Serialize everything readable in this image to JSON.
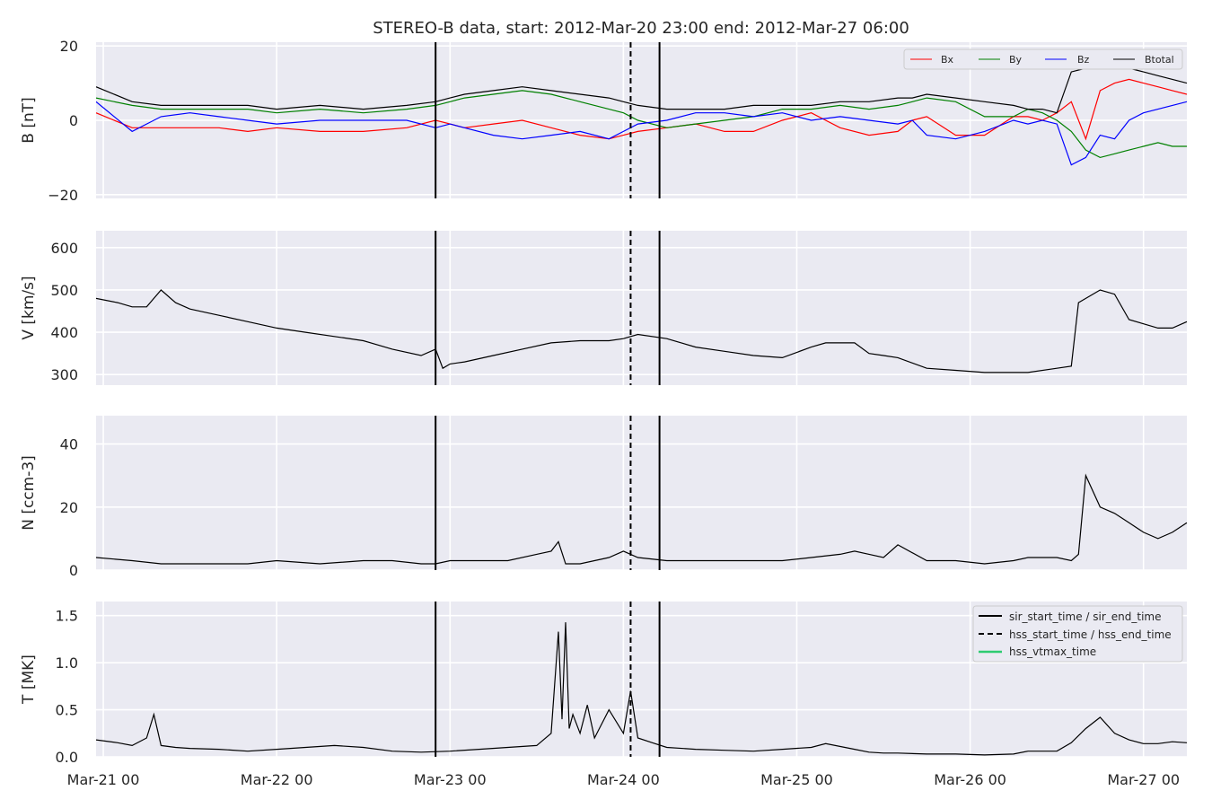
{
  "title": "STEREO-B data, start: 2012-Mar-20 23:00  end: 2012-Mar-27 06:00",
  "x_ticks": [
    "Mar-21 00",
    "Mar-22 00",
    "Mar-23 00",
    "Mar-24 00",
    "Mar-25 00",
    "Mar-26 00",
    "Mar-27 00"
  ],
  "colors": {
    "bx": "#ff0000",
    "by": "#008000",
    "bz": "#0000ff",
    "btotal": "#000000",
    "vtmax": "#2ecc71",
    "panel_bg": "#eaeaf2"
  },
  "chart_data": [
    {
      "type": "line",
      "ylabel": "B [nT]",
      "xlim": [
        -1,
        150
      ],
      "ylim": [
        -21,
        21
      ],
      "y_ticks": [
        "20",
        "0",
        "−20"
      ],
      "y_tick_values": [
        20,
        0,
        -20
      ],
      "legend_position": "top-right",
      "series": [
        {
          "name": "Bx",
          "color": "#ff0000",
          "x": [
            -1,
            4,
            8,
            12,
            16,
            20,
            24,
            30,
            36,
            42,
            46,
            48,
            50,
            54,
            58,
            62,
            66,
            70,
            72,
            74,
            78,
            82,
            86,
            90,
            94,
            98,
            102,
            106,
            110,
            112,
            114,
            118,
            122,
            126,
            128,
            130,
            132,
            134,
            136,
            138,
            140,
            142,
            144,
            146,
            148,
            150
          ],
          "y": [
            2,
            -2,
            -2,
            -2,
            -2,
            -3,
            -2,
            -3,
            -3,
            -2,
            0,
            -1,
            -2,
            -1,
            0,
            -2,
            -4,
            -5,
            -4,
            -3,
            -2,
            -1,
            -3,
            -3,
            0,
            2,
            -2,
            -4,
            -3,
            0,
            1,
            -4,
            -4,
            1,
            1,
            0,
            2,
            5,
            -5,
            8,
            10,
            11,
            10,
            9,
            8,
            7
          ]
        },
        {
          "name": "By",
          "color": "#008000",
          "x": [
            -1,
            4,
            8,
            12,
            16,
            20,
            24,
            30,
            36,
            42,
            46,
            48,
            50,
            54,
            58,
            62,
            66,
            70,
            72,
            74,
            78,
            82,
            86,
            90,
            94,
            98,
            102,
            106,
            110,
            112,
            114,
            118,
            122,
            126,
            128,
            130,
            132,
            134,
            136,
            138,
            140,
            142,
            144,
            146,
            148,
            150
          ],
          "y": [
            6,
            4,
            3,
            3,
            3,
            3,
            2,
            3,
            2,
            3,
            4,
            5,
            6,
            7,
            8,
            7,
            5,
            3,
            2,
            0,
            -2,
            -1,
            0,
            1,
            3,
            3,
            4,
            3,
            4,
            5,
            6,
            5,
            1,
            1,
            3,
            2,
            0,
            -3,
            -8,
            -10,
            -9,
            -8,
            -7,
            -6,
            -7,
            -7
          ]
        },
        {
          "name": "Bz",
          "color": "#0000ff",
          "x": [
            -1,
            4,
            8,
            12,
            16,
            20,
            24,
            30,
            36,
            42,
            46,
            48,
            50,
            54,
            58,
            62,
            66,
            70,
            72,
            74,
            78,
            82,
            86,
            90,
            94,
            98,
            102,
            106,
            110,
            112,
            114,
            118,
            122,
            126,
            128,
            130,
            132,
            134,
            136,
            138,
            140,
            142,
            144,
            146,
            148,
            150
          ],
          "y": [
            5,
            -3,
            1,
            2,
            1,
            0,
            -1,
            0,
            0,
            0,
            -2,
            -1,
            -2,
            -4,
            -5,
            -4,
            -3,
            -5,
            -3,
            -1,
            0,
            2,
            2,
            1,
            2,
            0,
            1,
            0,
            -1,
            0,
            -4,
            -5,
            -3,
            0,
            -1,
            0,
            -1,
            -12,
            -10,
            -4,
            -5,
            0,
            2,
            3,
            4,
            5
          ]
        },
        {
          "name": "Btotal",
          "color": "#000000",
          "x": [
            -1,
            4,
            8,
            12,
            16,
            20,
            24,
            30,
            36,
            42,
            46,
            48,
            50,
            54,
            58,
            62,
            66,
            70,
            72,
            74,
            78,
            82,
            86,
            90,
            94,
            98,
            102,
            106,
            110,
            112,
            114,
            118,
            122,
            126,
            128,
            130,
            132,
            134,
            136,
            138,
            140,
            142,
            144,
            146,
            148,
            150
          ],
          "y": [
            9,
            5,
            4,
            4,
            4,
            4,
            3,
            4,
            3,
            4,
            5,
            6,
            7,
            8,
            9,
            8,
            7,
            6,
            5,
            4,
            3,
            3,
            3,
            4,
            4,
            4,
            5,
            5,
            6,
            6,
            7,
            6,
            5,
            4,
            3,
            3,
            2,
            13,
            14,
            15,
            15,
            14,
            13,
            12,
            11,
            10
          ]
        }
      ]
    },
    {
      "type": "line",
      "ylabel": "V [km/s]",
      "xlim": [
        -1,
        150
      ],
      "ylim": [
        275,
        640
      ],
      "y_ticks": [
        "600",
        "500",
        "400",
        "300"
      ],
      "y_tick_values": [
        600,
        500,
        400,
        300
      ],
      "series": [
        {
          "name": "V",
          "color": "#000000",
          "x": [
            -1,
            2,
            4,
            6,
            8,
            10,
            12,
            16,
            20,
            24,
            28,
            32,
            36,
            40,
            44,
            46,
            47,
            48,
            50,
            54,
            58,
            62,
            66,
            70,
            72,
            74,
            78,
            82,
            86,
            90,
            94,
            98,
            100,
            104,
            106,
            108,
            110,
            114,
            118,
            122,
            126,
            128,
            132,
            134,
            135,
            136,
            138,
            140,
            142,
            144,
            146,
            148,
            150
          ],
          "y": [
            480,
            470,
            460,
            460,
            500,
            470,
            455,
            440,
            425,
            410,
            400,
            390,
            380,
            360,
            345,
            360,
            315,
            325,
            330,
            345,
            360,
            375,
            380,
            380,
            385,
            395,
            385,
            365,
            355,
            345,
            340,
            365,
            375,
            375,
            350,
            345,
            340,
            315,
            310,
            305,
            305,
            305,
            315,
            320,
            470,
            480,
            500,
            490,
            430,
            420,
            410,
            410,
            425
          ]
        }
      ]
    },
    {
      "type": "line",
      "ylabel": "N [ccm-3]",
      "xlim": [
        -1,
        150
      ],
      "ylim": [
        0,
        49
      ],
      "y_ticks": [
        "40",
        "20",
        "0"
      ],
      "y_tick_values": [
        40,
        20,
        0
      ],
      "series": [
        {
          "name": "N",
          "color": "#000000",
          "x": [
            -1,
            4,
            8,
            12,
            16,
            20,
            24,
            30,
            36,
            40,
            44,
            46,
            48,
            52,
            56,
            60,
            62,
            63,
            64,
            66,
            68,
            70,
            72,
            74,
            78,
            82,
            86,
            90,
            94,
            98,
            102,
            104,
            106,
            108,
            110,
            114,
            118,
            122,
            126,
            128,
            132,
            134,
            135,
            136,
            138,
            140,
            142,
            144,
            146,
            148,
            150
          ],
          "y": [
            4,
            3,
            2,
            2,
            2,
            2,
            3,
            2,
            3,
            3,
            2,
            2,
            3,
            3,
            3,
            5,
            6,
            9,
            2,
            2,
            3,
            4,
            6,
            4,
            3,
            3,
            3,
            3,
            3,
            4,
            5,
            6,
            5,
            4,
            8,
            3,
            3,
            2,
            3,
            4,
            4,
            3,
            5,
            30,
            20,
            18,
            15,
            12,
            10,
            12,
            15
          ]
        }
      ]
    },
    {
      "type": "line",
      "ylabel": "T [MK]",
      "xlim": [
        -1,
        150
      ],
      "ylim": [
        0,
        1.65
      ],
      "y_ticks": [
        "1.5",
        "1.0",
        "0.5",
        "0.0"
      ],
      "y_tick_values": [
        1.5,
        1.0,
        0.5,
        0.0
      ],
      "legend_position": "top-right",
      "legend": [
        "sir_start_time / sir_end_time",
        "hss_start_time / hss_end_time",
        "hss_vtmax_time"
      ],
      "series": [
        {
          "name": "T",
          "color": "#000000",
          "x": [
            -1,
            2,
            4,
            6,
            7,
            8,
            10,
            12,
            16,
            20,
            24,
            28,
            32,
            36,
            40,
            44,
            48,
            52,
            56,
            60,
            62,
            63,
            63.5,
            64,
            64.5,
            65,
            66,
            67,
            68,
            70,
            72,
            73,
            74,
            76,
            78,
            82,
            86,
            90,
            94,
            98,
            100,
            104,
            106,
            108,
            110,
            114,
            118,
            122,
            126,
            128,
            132,
            134,
            136,
            138,
            140,
            142,
            144,
            146,
            148,
            150
          ],
          "y": [
            0.18,
            0.15,
            0.12,
            0.2,
            0.45,
            0.12,
            0.1,
            0.09,
            0.08,
            0.06,
            0.08,
            0.1,
            0.12,
            0.1,
            0.06,
            0.05,
            0.06,
            0.08,
            0.1,
            0.12,
            0.25,
            1.33,
            0.4,
            1.43,
            0.3,
            0.45,
            0.25,
            0.55,
            0.2,
            0.5,
            0.25,
            0.7,
            0.2,
            0.15,
            0.1,
            0.08,
            0.07,
            0.06,
            0.08,
            0.1,
            0.14,
            0.08,
            0.05,
            0.04,
            0.04,
            0.03,
            0.03,
            0.02,
            0.03,
            0.06,
            0.06,
            0.15,
            0.3,
            0.42,
            0.25,
            0.18,
            0.14,
            0.14,
            0.16,
            0.15
          ]
        }
      ]
    }
  ],
  "event_lines": [
    {
      "name": "sir_start_time",
      "x": 46,
      "style": "solid"
    },
    {
      "name": "hss_start_time",
      "x": 73,
      "style": "dashed"
    },
    {
      "name": "sir_end_time",
      "x": 77,
      "style": "solid"
    }
  ]
}
